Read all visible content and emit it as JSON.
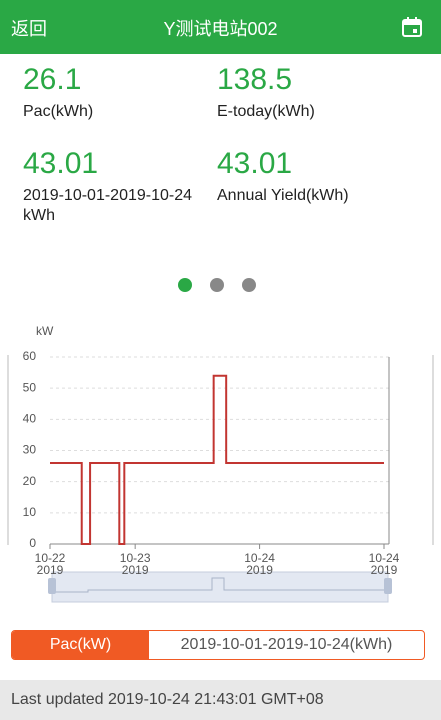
{
  "header": {
    "back": "返回",
    "title": "Y测试电站002"
  },
  "stats": [
    {
      "value": "26.1",
      "label": "Pac(kWh)"
    },
    {
      "value": "138.5",
      "label": "E-today(kWh)"
    },
    {
      "value": "43.01",
      "label": "2019-10-01-2019-10-24kWh"
    },
    {
      "value": "43.01",
      "label": "Annual Yield(kWh)"
    }
  ],
  "chart_data": {
    "type": "line",
    "y_label": "kW",
    "color": "#c23531",
    "x": [
      0,
      3.8,
      3.8,
      4.8,
      4.8,
      8.3,
      8.3,
      8.9,
      8.9,
      19.6,
      19.6,
      21.1,
      21.1,
      40
    ],
    "values": [
      26,
      26,
      0,
      0,
      26,
      26,
      0,
      0,
      26,
      26,
      54,
      54,
      26,
      26
    ],
    "xlim": [
      0,
      40
    ],
    "xticks": [
      {
        "value": 0,
        "label": "10-22\n2019"
      },
      {
        "value": 10.2,
        "label": "10-23\n2019"
      },
      {
        "value": 25.1,
        "label": "10-24\n2019"
      },
      {
        "value": 40,
        "label": "10-24\n2019"
      }
    ],
    "ylim": [
      0,
      60
    ],
    "yticks": [
      0,
      10,
      20,
      30,
      40,
      50,
      60
    ],
    "grid": true
  },
  "tabs": [
    "Pac(kW)",
    "2019-10-01-2019-10-24(kWh)"
  ],
  "footer": "Last updated 2019-10-24 21:43:01 GMT+08"
}
